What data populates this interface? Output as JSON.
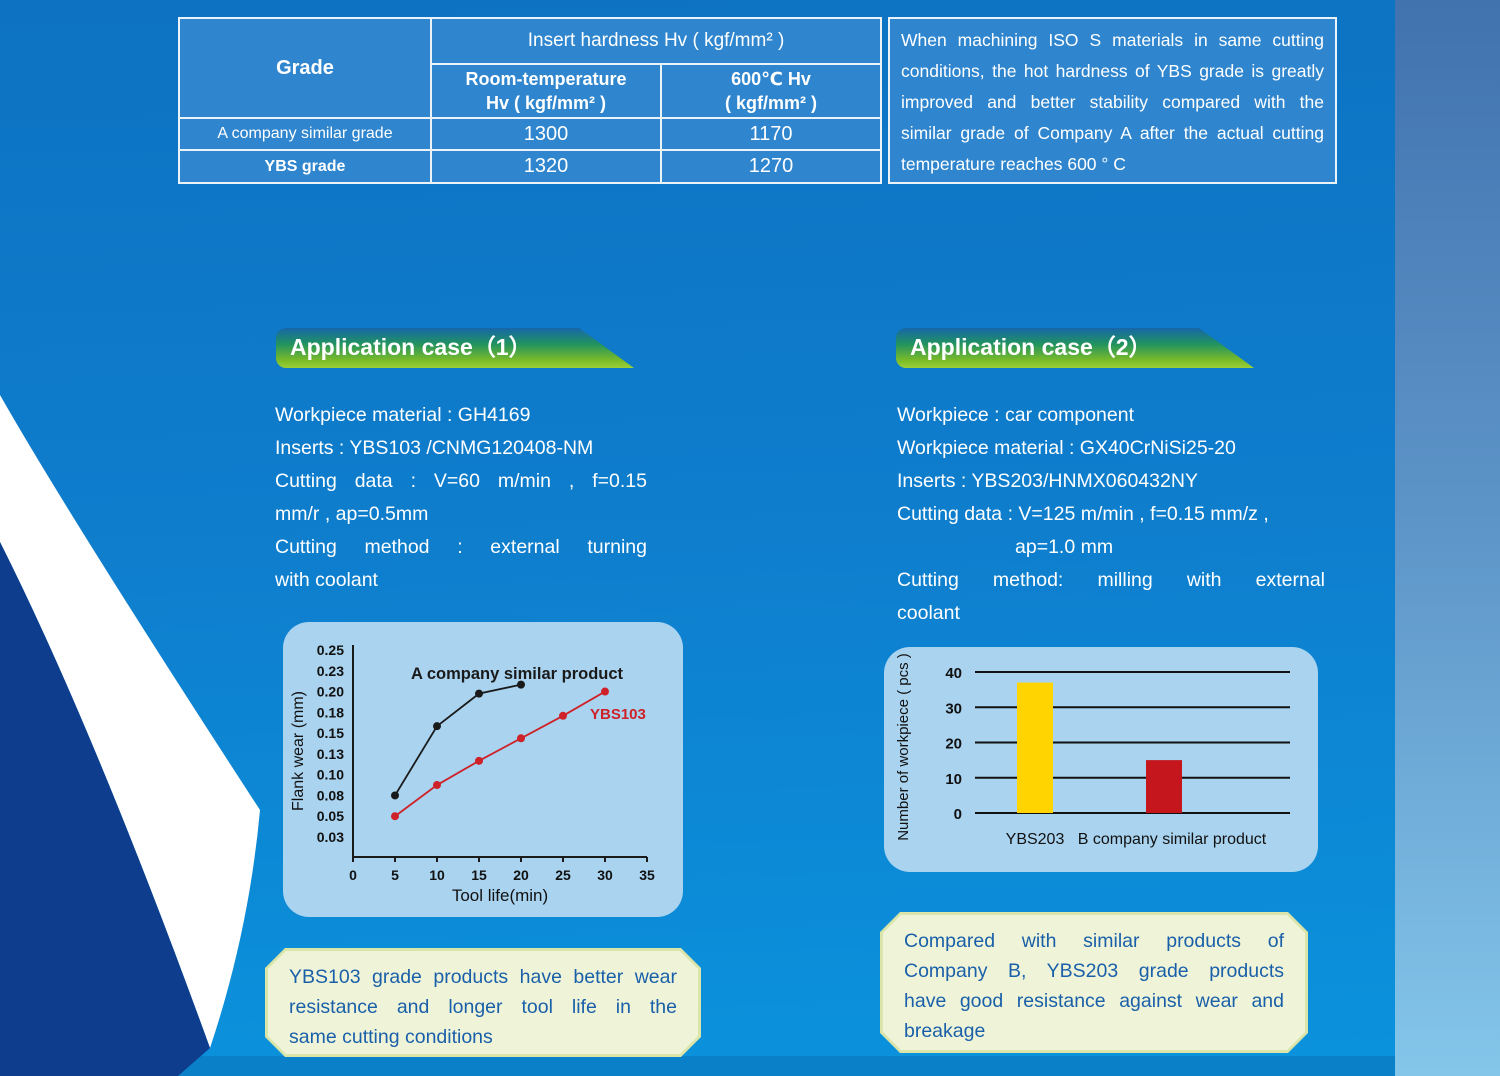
{
  "colors": {
    "page_bg_top": "#0D72C2",
    "page_bg_bottom": "#0B93DD",
    "table_cell_bg": "#2F86CE",
    "table_border": "#EAF2FA",
    "right_band_top": "#4173AF",
    "right_band_bottom": "#84C6EA",
    "bottom_bar": "#0A80C9",
    "navy_wedge": "#0D3D8C",
    "white_ribbon": "#FFFFFF",
    "panel_bg": "#A9D3EF",
    "note_bg": "#EFF4D9",
    "note_border": "#D9E5A9",
    "note_text": "#1A60A9",
    "banner_green": "#7CBD27",
    "banner_blue": "#1766A9",
    "line_black": "#1a1a1a",
    "line_red": "#CF2128",
    "bar_yellow": "#FFD400",
    "bar_red": "#C4161C"
  },
  "table": {
    "grade_header": "Grade",
    "insert_hardness_header": "Insert hardness Hv ( kgf/mm² )",
    "rt_header_line1": "Room-temperature",
    "rt_header_line2": "Hv ( kgf/mm² )",
    "hot_header_line1": "600℃ Hv",
    "hot_header_line2": "( kgf/mm² )",
    "rows": [
      {
        "grade": "A company similar grade",
        "rt": "1300",
        "hot": "1170"
      },
      {
        "grade": "YBS grade",
        "rt": "1320",
        "hot": "1270"
      }
    ]
  },
  "intro": {
    "lines": [
      {
        "text": "When machining ISO S materials in same cutting",
        "stretch": true
      },
      {
        "text": "conditions, the hot hardness of YBS grade is greatly",
        "stretch": true
      },
      {
        "text": "improved and better stability compared with the",
        "stretch": true
      },
      {
        "text": "similar grade of Company A after the actual cutting",
        "stretch": true
      },
      {
        "text": "temperature reaches 600 ° C",
        "stretch": false
      }
    ]
  },
  "case1": {
    "title": "Application case（1）",
    "lines": [
      {
        "text": "Workpiece material : GH4169",
        "stretch": false
      },
      {
        "text": "Inserts : YBS103 /CNMG120408-NM",
        "stretch": false
      },
      {
        "text": "Cutting data : V=60 m/min , f=0.15",
        "stretch": true
      },
      {
        "text": "mm/r , ap=0.5mm",
        "stretch": false
      },
      {
        "text": "Cutting method : external turning",
        "stretch": true
      },
      {
        "text": "with coolant",
        "stretch": false
      }
    ],
    "note": "YBS103 grade products have better wear resistance and longer tool life in the same cutting conditions",
    "note_lines": [
      {
        "text": "YBS103 grade products have better wear",
        "stretch": true
      },
      {
        "text": "resistance and longer tool life in the",
        "stretch": true
      },
      {
        "text": "same cutting conditions",
        "stretch": false
      }
    ]
  },
  "case2": {
    "title": "Application case（2）",
    "lines": [
      {
        "text": "Workpiece : car component",
        "stretch": false
      },
      {
        "text": "Workpiece material : GX40CrNiSi25-20",
        "stretch": false
      },
      {
        "text": "Inserts : YBS203/HNMX060432NY",
        "stretch": false
      },
      {
        "text": "Cutting data : V=125 m/min , f=0.15 mm/z ,",
        "stretch": false
      },
      {
        "text": "ap=1.0 mm",
        "stretch": false,
        "indent": true
      },
      {
        "text": "Cutting method: milling with external",
        "stretch": true
      },
      {
        "text": "coolant",
        "stretch": false
      }
    ],
    "note": "Compared with similar products of Company B, YBS203 grade products have good resistance against wear and breakage",
    "note_lines": [
      {
        "text": "Compared with similar products of",
        "stretch": true
      },
      {
        "text": "Company B, YBS203 grade products",
        "stretch": true
      },
      {
        "text": "have good resistance against wear and",
        "stretch": true
      },
      {
        "text": "breakage",
        "stretch": false
      }
    ]
  },
  "chart_data": [
    {
      "type": "line",
      "title": "",
      "xlabel": "Tool life(min)",
      "ylabel": "Flank wear (mm)",
      "x_ticks": [
        0,
        5,
        10,
        15,
        20,
        25,
        30,
        35
      ],
      "y_ticks": [
        0.25,
        0.23,
        0.2,
        0.18,
        0.15,
        0.13,
        0.1,
        0.08,
        0.05,
        0.03
      ],
      "xlim": [
        0,
        35
      ],
      "grid": false,
      "legend_position": "inline-labels",
      "series": [
        {
          "name": "A company similar product",
          "color": "#1a1a1a",
          "x": [
            5,
            10,
            15,
            20
          ],
          "y": [
            0.08,
            0.16,
            0.198,
            0.21
          ]
        },
        {
          "name": "YBS103",
          "color": "#CF2128",
          "x": [
            5,
            10,
            15,
            20,
            25,
            30
          ],
          "y": [
            0.05,
            0.09,
            0.12,
            0.145,
            0.175,
            0.2
          ]
        }
      ]
    },
    {
      "type": "bar",
      "title": "",
      "xlabel": "",
      "ylabel": "Number of workpiece ( pcs )",
      "categories": [
        "YBS203",
        "B company similar product"
      ],
      "values": [
        37,
        15
      ],
      "bar_colors": [
        "#FFD400",
        "#C4161C"
      ],
      "y_ticks": [
        0,
        10,
        20,
        30,
        40
      ],
      "ylim": [
        0,
        40
      ],
      "grid": true
    }
  ]
}
